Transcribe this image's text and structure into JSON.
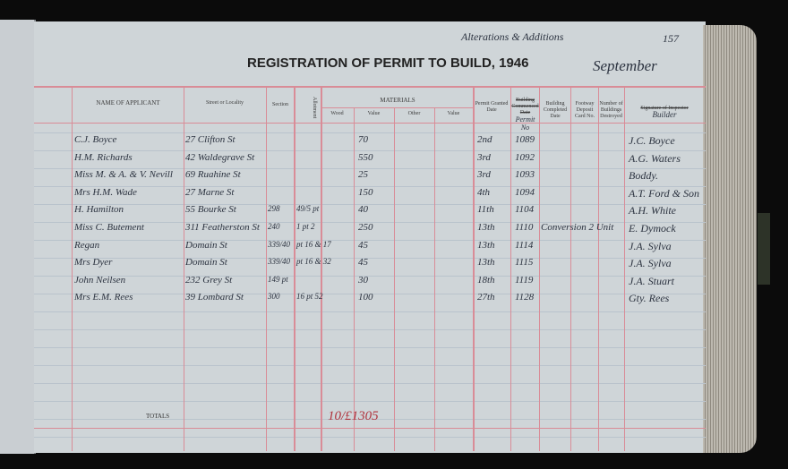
{
  "note": "Alterations & Additions",
  "page_number": "157",
  "title": "REGISTRATION OF PERMIT TO BUILD, 1946",
  "month": "September",
  "headers": {
    "name": "NAME OF APPLICANT",
    "street": "Street or Locality",
    "section": "Section",
    "allotment": "Allotment",
    "materials": "MATERIALS",
    "wood": "Wood",
    "value1": "Value",
    "other": "Other",
    "value2": "Value",
    "permit_date": "Permit Granted Date",
    "building_permit": "Building Commenced Date",
    "building_permit_hand": "Permit No",
    "completed": "Building Completed Date",
    "footway": "Footway Deposit Card No.",
    "destroyed": "Number of Buildings Destroyed",
    "signature": "Signature of Inspector",
    "signature_hand": "Builder",
    "totals": "TOTALS"
  },
  "rows": [
    {
      "name": "C.J. Boyce",
      "street": "27 Clifton St",
      "section": "",
      "allotment": "",
      "value": "70",
      "date": "2nd",
      "permit": "1089",
      "remark": "",
      "builder": "J.C. Boyce"
    },
    {
      "name": "H.M. Richards",
      "street": "42 Waldegrave St",
      "section": "",
      "allotment": "",
      "value": "550",
      "date": "3rd",
      "permit": "1092",
      "remark": "",
      "builder": "A.G. Waters"
    },
    {
      "name": "Miss M. & A. & V. Nevill",
      "street": "69 Ruahine St",
      "section": "",
      "allotment": "",
      "value": "25",
      "date": "3rd",
      "permit": "1093",
      "remark": "",
      "builder": "Boddy."
    },
    {
      "name": "Mrs H.M. Wade",
      "street": "27 Marne St",
      "section": "",
      "allotment": "",
      "value": "150",
      "date": "4th",
      "permit": "1094",
      "remark": "",
      "builder": "A.T. Ford & Son"
    },
    {
      "name": "H. Hamilton",
      "street": "55 Bourke St",
      "section": "298",
      "allotment": "49/5 pt",
      "value": "40",
      "date": "11th",
      "permit": "1104",
      "remark": "",
      "builder": "A.H. White"
    },
    {
      "name": "Miss C. Butement",
      "street": "311 Featherston St",
      "section": "240",
      "allotment": "1 pt 2",
      "value": "250",
      "date": "13th",
      "permit": "1110",
      "remark": "Conversion 2 Unit",
      "builder": "E. Dymock"
    },
    {
      "name": "Regan",
      "street": "Domain St",
      "section": "339/40",
      "allotment": "pt 16 & 17",
      "value": "45",
      "date": "13th",
      "permit": "1114",
      "remark": "",
      "builder": "J.A. Sylva"
    },
    {
      "name": "Mrs Dyer",
      "street": "Domain St",
      "section": "339/40",
      "allotment": "pt 16 & 32",
      "value": "45",
      "date": "13th",
      "permit": "1115",
      "remark": "",
      "builder": "J.A. Sylva"
    },
    {
      "name": "John Neilsen",
      "street": "232 Grey St",
      "section": "149 pt",
      "allotment": "",
      "value": "30",
      "date": "18th",
      "permit": "1119",
      "remark": "",
      "builder": "J.A. Stuart"
    },
    {
      "name": "Mrs E.M. Rees",
      "street": "39 Lombard St",
      "section": "300",
      "allotment": "16 pt 52",
      "value": "100",
      "date": "27th",
      "permit": "1128",
      "remark": "",
      "builder": "Gty. Rees"
    }
  ],
  "total": "10/£1305"
}
